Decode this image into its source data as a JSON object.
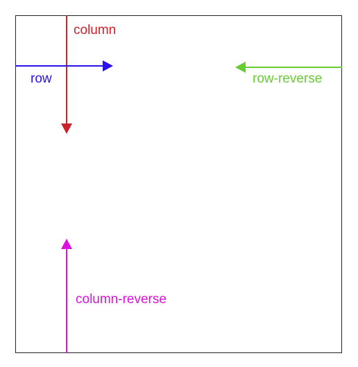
{
  "labels": {
    "column": "column",
    "row": "row",
    "row_reverse": "row-reverse",
    "column_reverse": "column-reverse"
  },
  "colors": {
    "column": "#cc2229",
    "row": "#2a12e8",
    "row_reverse": "#66cc33",
    "column_reverse": "#dd10dd",
    "frame": "#222222"
  }
}
